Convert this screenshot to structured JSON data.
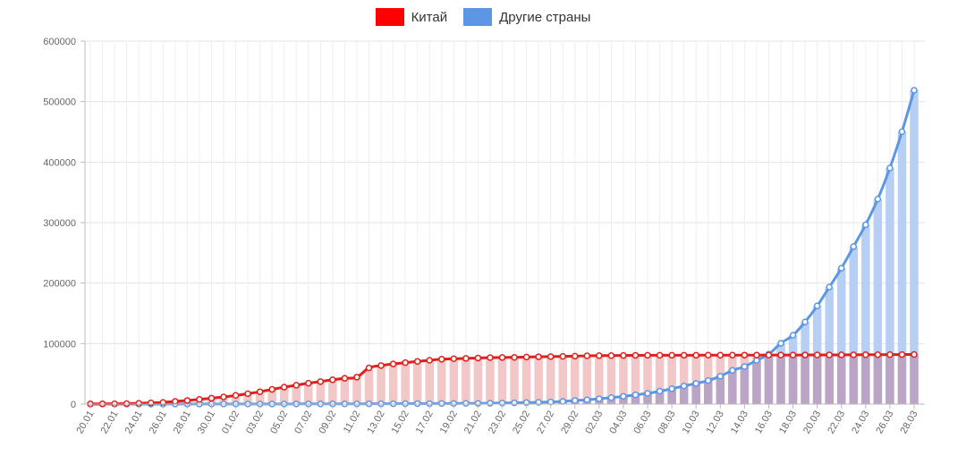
{
  "colors": {
    "china": "#ff0000",
    "china_line": "#e0201c",
    "china_bar": "#f2c7c8",
    "other": "#5b97e4",
    "other_bar": "#b6cff2",
    "overlap_bar": "#bba5c6",
    "grid": "#e3e3e3"
  },
  "legend": [
    {
      "label": "Китай",
      "color": "#ff0000"
    },
    {
      "label": "Другие страны",
      "color": "#5b97e4"
    }
  ],
  "chart_data": {
    "type": "line",
    "title": "",
    "xlabel": "",
    "ylabel": "",
    "ylim": [
      0,
      600000
    ],
    "yticks": [
      0,
      100000,
      200000,
      300000,
      400000,
      500000,
      600000
    ],
    "ytick_labels": [
      "0",
      "100000",
      "200000",
      "300000",
      "400000",
      "500000",
      "600000"
    ],
    "legend_position": "top-center",
    "grid": true,
    "x": [
      "20.01",
      "21.01",
      "22.01",
      "23.01",
      "24.01",
      "25.01",
      "26.01",
      "27.01",
      "28.01",
      "29.01",
      "30.01",
      "31.01",
      "01.02",
      "02.02",
      "03.02",
      "04.02",
      "05.02",
      "06.02",
      "07.02",
      "08.02",
      "09.02",
      "10.02",
      "11.02",
      "12.02",
      "13.02",
      "14.02",
      "15.02",
      "16.02",
      "17.02",
      "18.02",
      "19.02",
      "20.02",
      "21.02",
      "22.02",
      "23.02",
      "24.02",
      "25.02",
      "26.02",
      "27.02",
      "28.02",
      "29.02",
      "01.03",
      "02.03",
      "03.03",
      "04.03",
      "05.03",
      "06.03",
      "07.03",
      "08.03",
      "09.03",
      "10.03",
      "11.03",
      "12.03",
      "13.03",
      "14.03",
      "15.03",
      "16.03",
      "17.03",
      "18.03",
      "19.03",
      "20.03",
      "21.03",
      "22.03",
      "23.03",
      "24.03",
      "25.03",
      "26.03",
      "27.03",
      "28.03"
    ],
    "x_tick_labels": [
      "20.01",
      "22.01",
      "24.01",
      "26.01",
      "28.01",
      "30.01",
      "01.02",
      "03.02",
      "05.02",
      "07.02",
      "09.02",
      "11.02",
      "13.02",
      "15.02",
      "17.02",
      "19.02",
      "21.02",
      "23.02",
      "25.02",
      "27.02",
      "29.02",
      "02.03",
      "04.03",
      "06.03",
      "08.03",
      "10.03",
      "12.03",
      "14.03",
      "16.03",
      "18.03",
      "20.03",
      "22.03",
      "24.03",
      "26.03",
      "28.03"
    ],
    "series": [
      {
        "name": "Китай",
        "values": [
          300,
          500,
          600,
          800,
          1300,
          2000,
          2800,
          4500,
          6000,
          7800,
          9700,
          11800,
          14400,
          17200,
          20400,
          24300,
          28000,
          31200,
          34500,
          37200,
          40200,
          42600,
          44600,
          59800,
          63800,
          66400,
          68500,
          70500,
          72400,
          74200,
          75000,
          75500,
          76200,
          76800,
          77100,
          77200,
          77800,
          78200,
          78600,
          78900,
          79300,
          79800,
          80100,
          80200,
          80400,
          80600,
          80700,
          80700,
          80800,
          80800,
          80800,
          80900,
          80900,
          80900,
          81000,
          81000,
          81100,
          81100,
          81100,
          81200,
          81300,
          81300,
          81400,
          81500,
          81600,
          81700,
          81800,
          81900,
          82000
        ]
      },
      {
        "name": "Другие страны",
        "values": [
          0,
          0,
          0,
          0,
          0,
          0,
          100,
          100,
          100,
          100,
          200,
          200,
          200,
          200,
          200,
          200,
          200,
          300,
          300,
          300,
          300,
          400,
          400,
          500,
          500,
          600,
          700,
          800,
          800,
          900,
          1000,
          1100,
          1200,
          1400,
          1700,
          2000,
          2500,
          3000,
          3600,
          4400,
          5900,
          7100,
          8800,
          10700,
          12800,
          15300,
          17700,
          21400,
          25300,
          30000,
          34100,
          38900,
          46100,
          55700,
          62100,
          72300,
          82500,
          100600,
          113800,
          135800,
          162300,
          193400,
          224700,
          260500,
          296500,
          339000,
          390300,
          450400,
          518800
        ]
      }
    ]
  }
}
